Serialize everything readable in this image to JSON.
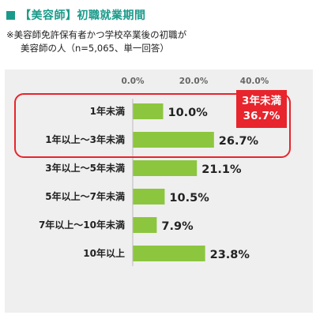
{
  "header": {
    "title": "【美容師】初職就業期間",
    "accent_color": "#1a9a8a"
  },
  "note": {
    "line1": "※美容師免許保有者かつ学校卒業後の初職が",
    "line2": "美容師の人（n=5,065、単一回答）"
  },
  "callout": {
    "line1": "3年未満",
    "line2": "36.7%",
    "color": "#e8242c"
  },
  "chart_data": {
    "type": "bar",
    "orientation": "horizontal",
    "categories": [
      "1年未満",
      "1年以上～3年未満",
      "3年以上～5年未満",
      "5年以上～7年未満",
      "7年以上～10年未満",
      "10年以上"
    ],
    "values": [
      10.0,
      26.7,
      21.1,
      10.5,
      7.9,
      23.8
    ],
    "value_labels": [
      "10.0%",
      "26.7%",
      "21.1%",
      "10.5%",
      "7.9%",
      "23.8%"
    ],
    "tick_labels": [
      "0.0%",
      "20.0%",
      "40.0%"
    ],
    "tick_values": [
      0,
      20,
      40
    ],
    "xlim": [
      0,
      40
    ],
    "grid": false,
    "bar_color": "#8cc63f",
    "panel_color": "#efefef"
  }
}
